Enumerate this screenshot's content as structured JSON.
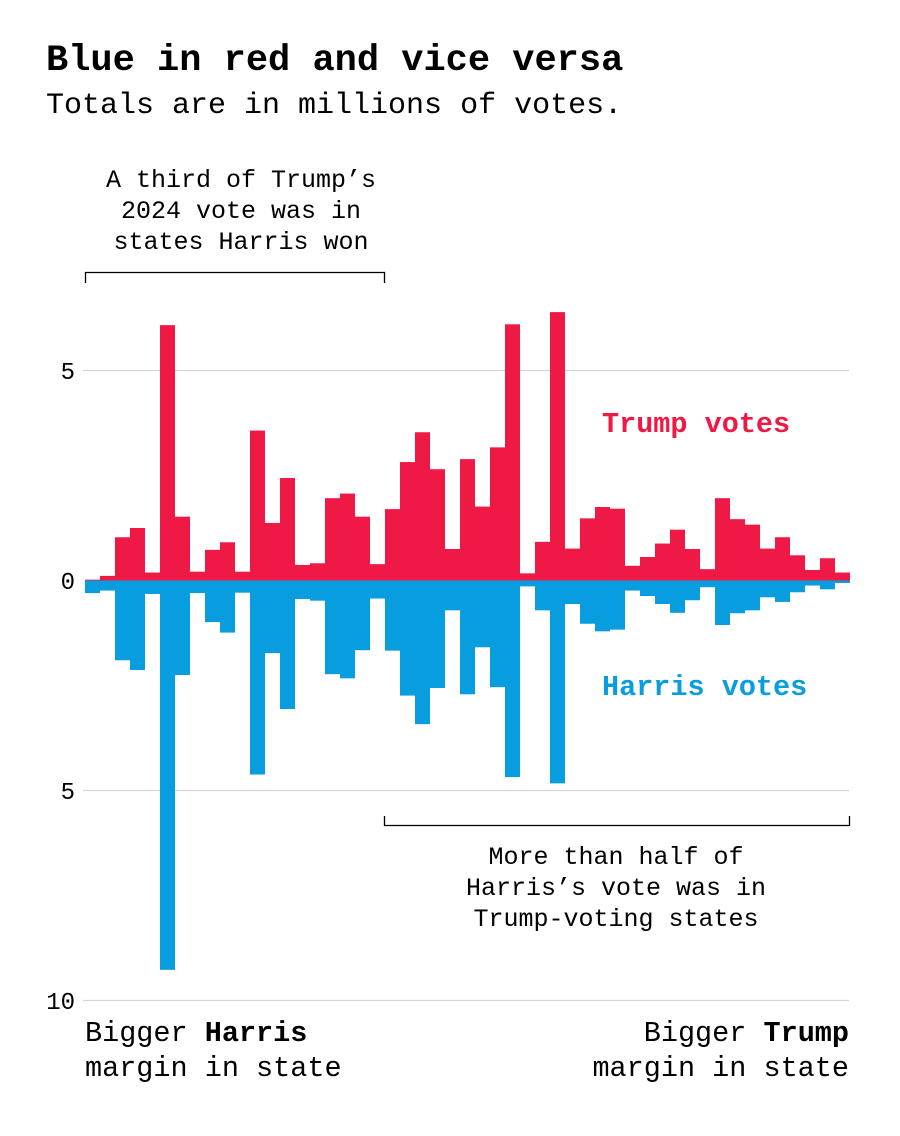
{
  "title": "Blue in red and vice versa",
  "subtitle": "Totals are in millions of votes.",
  "annotations": {
    "top": [
      "A third of Trump’s",
      "2024 vote was in",
      "states Harris won"
    ],
    "bottom": [
      "More than half of",
      "Harris’s vote was in",
      "Trump-voting states"
    ]
  },
  "footer": {
    "left_prefix": "Bigger ",
    "left_bold": "Harris",
    "left_line2": "margin in state",
    "right_prefix": "Bigger ",
    "right_bold": "Trump",
    "right_line2": "margin in state"
  },
  "chart_data": {
    "type": "bar",
    "layout": "diverging, states ordered from biggest Harris margin to biggest Trump margin",
    "title": "Blue in red and vice versa",
    "subtitle": "Totals are in millions of votes.",
    "y_ticks_up": [
      "5",
      "0"
    ],
    "y_ticks_down": [
      "5",
      "10"
    ],
    "ylim_up": [
      0,
      5
    ],
    "ylim_down": [
      0,
      10
    ],
    "grid": true,
    "colors": {
      "trump": "#ee1944",
      "harris": "#079ddf"
    },
    "series": [
      {
        "name": "Trump votes",
        "direction": "up",
        "values": [
          0.02,
          0.11,
          1.03,
          1.25,
          0.19,
          6.08,
          1.52,
          0.21,
          0.73,
          0.91,
          0.21,
          3.57,
          1.37,
          2.44,
          0.37,
          0.41,
          1.96,
          2.07,
          1.52,
          0.39,
          1.7,
          2.82,
          3.53,
          2.65,
          0.75,
          2.89,
          1.76,
          3.17,
          6.1,
          0.17,
          0.92,
          6.39,
          0.76,
          1.48,
          1.75,
          1.71,
          0.35,
          0.56,
          0.88,
          1.21,
          0.75,
          0.27,
          1.96,
          1.46,
          1.33,
          0.76,
          1.03,
          0.6,
          0.25,
          0.53,
          0.19
        ]
      },
      {
        "name": "Harris votes",
        "direction": "down",
        "values": [
          0.3,
          0.24,
          1.9,
          2.13,
          0.32,
          9.27,
          2.25,
          0.3,
          0.99,
          1.24,
          0.29,
          4.62,
          1.73,
          3.06,
          0.44,
          0.48,
          2.23,
          2.33,
          1.66,
          0.43,
          1.67,
          2.74,
          3.42,
          2.56,
          0.71,
          2.71,
          1.59,
          2.54,
          4.68,
          0.14,
          0.71,
          4.83,
          0.56,
          1.03,
          1.21,
          1.17,
          0.24,
          0.37,
          0.56,
          0.77,
          0.47,
          0.16,
          1.06,
          0.78,
          0.71,
          0.4,
          0.51,
          0.28,
          0.12,
          0.21,
          0.06
        ]
      }
    ]
  }
}
